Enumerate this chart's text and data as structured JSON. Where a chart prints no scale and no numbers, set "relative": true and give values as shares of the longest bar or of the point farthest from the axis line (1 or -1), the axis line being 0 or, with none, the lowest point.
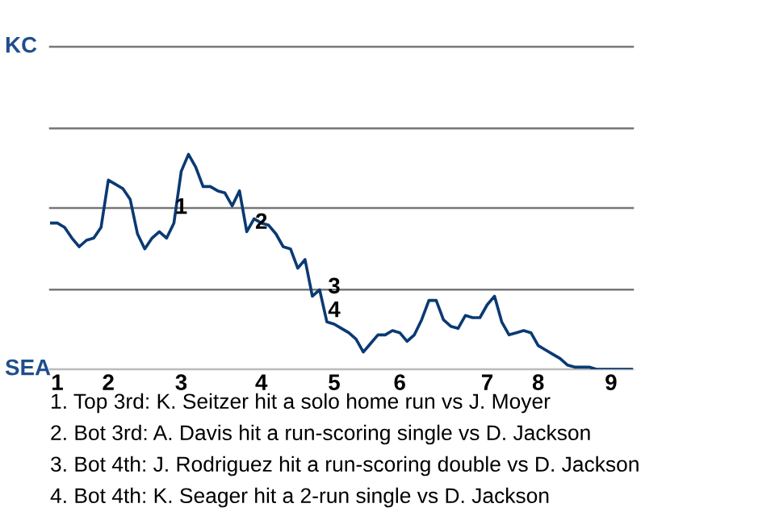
{
  "chart_data": {
    "type": "line",
    "relative": true,
    "categories": [
      null,
      "1",
      null,
      null,
      null,
      null,
      null,
      null,
      "2",
      null,
      null,
      null,
      null,
      null,
      null,
      null,
      null,
      null,
      "3",
      null,
      null,
      null,
      null,
      null,
      null,
      null,
      null,
      null,
      null,
      "4",
      null,
      null,
      null,
      null,
      null,
      null,
      null,
      null,
      null,
      "5",
      null,
      null,
      null,
      null,
      null,
      null,
      null,
      null,
      "6",
      null,
      null,
      null,
      null,
      null,
      null,
      null,
      null,
      null,
      null,
      null,
      "7",
      null,
      null,
      null,
      null,
      null,
      null,
      "8",
      null,
      null,
      null,
      null,
      null,
      null,
      null,
      null,
      null,
      "9",
      null,
      null,
      null
    ],
    "series": [
      {
        "color": "#0b3a73",
        "values": [
          0.68,
          0.68,
          0.66,
          0.61,
          0.57,
          0.6,
          0.61,
          0.66,
          0.88,
          0.86,
          0.84,
          0.79,
          0.63,
          0.56,
          0.61,
          0.64,
          0.61,
          0.68,
          0.92,
          1,
          0.94,
          0.85,
          0.85,
          0.83,
          0.82,
          0.76,
          0.83,
          0.64,
          0.7,
          0.68,
          0.67,
          0.63,
          0.57,
          0.56,
          0.47,
          0.51,
          0.34,
          0.37,
          0.22,
          0.21,
          0.19,
          0.17,
          0.14,
          0.08,
          0.12,
          0.16,
          0.16,
          0.18,
          0.17,
          0.13,
          0.16,
          0.23,
          0.32,
          0.32,
          0.23,
          0.2,
          0.19,
          0.25,
          0.24,
          0.24,
          0.3,
          0.34,
          0.22,
          0.16,
          0.17,
          0.18,
          0.17,
          0.11,
          0.09,
          0.07,
          0.05,
          0.02,
          0.01,
          0.01,
          0.01,
          0,
          0,
          0,
          0,
          0,
          0
        ]
      }
    ],
    "grid": false,
    "legend": false,
    "marker": "none",
    "line_style": "solid",
    "ref_lines": [
      {
        "axis": "y",
        "value": 0,
        "color": "#bbbbbb",
        "label": "SEA"
      },
      {
        "axis": "y",
        "value": 0.37,
        "color": "#777777"
      },
      {
        "axis": "y",
        "value": 0.75,
        "color": "#777777"
      },
      {
        "axis": "y",
        "value": 1.12,
        "color": "#777777"
      },
      {
        "axis": "y",
        "value": 1.5,
        "color": "#777777",
        "label": "KC"
      }
    ],
    "annotations": [
      {
        "text": "1",
        "x": "3",
        "y": 0.75
      },
      {
        "text": "2",
        "x": "4",
        "y": 0.68
      },
      {
        "text": "3",
        "x": "5",
        "y": 0.38
      },
      {
        "text": "4",
        "x": "5",
        "y": 0.27
      },
      "1. Top 3rd: K. Seitzer hit a solo home run vs J. Moyer",
      "2. Bot 3rd: A. Davis hit a run-scoring single vs D. Jackson",
      "3. Bot 4th: J. Rodriguez hit a run-scoring double vs D. Jackson",
      "4. Bot 4th: K. Seager hit a 2-run single vs D. Jackson"
    ]
  }
}
